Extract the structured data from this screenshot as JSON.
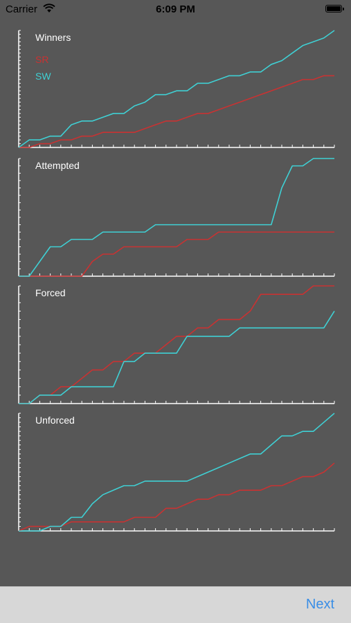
{
  "status_bar": {
    "carrier": "Carrier",
    "time": "6:09 PM"
  },
  "colors": {
    "series_1": "#c93232",
    "series_2": "#3fd0d4",
    "axis": "#ffffff",
    "background": "#575757"
  },
  "toolbar": {
    "next_label": "Next"
  },
  "chart_data": [
    {
      "type": "line",
      "title": "Winners",
      "legend": "top-left",
      "x": [
        0,
        1,
        2,
        3,
        4,
        5,
        6,
        7,
        8,
        9,
        10,
        11,
        12,
        13,
        14,
        15,
        16,
        17,
        18,
        19,
        20,
        21,
        22,
        23,
        24,
        25,
        26,
        27,
        28,
        29,
        30
      ],
      "series": [
        {
          "name": "SR",
          "values": [
            0,
            0,
            1,
            1,
            2,
            2,
            3,
            3,
            4,
            4,
            4,
            4,
            5,
            6,
            7,
            7,
            8,
            9,
            9,
            10,
            11,
            12,
            13,
            14,
            15,
            16,
            17,
            18,
            18,
            19,
            19
          ]
        },
        {
          "name": "SW",
          "values": [
            0,
            2,
            2,
            3,
            3,
            6,
            7,
            7,
            8,
            9,
            9,
            11,
            12,
            14,
            14,
            15,
            15,
            17,
            17,
            18,
            19,
            19,
            20,
            20,
            22,
            23,
            25,
            27,
            28,
            29,
            31
          ]
        }
      ]
    },
    {
      "type": "line",
      "title": "Attempted",
      "x": [
        0,
        1,
        2,
        3,
        4,
        5,
        6,
        7,
        8,
        9,
        10,
        11,
        12,
        13,
        14,
        15,
        16,
        17,
        18,
        19,
        20,
        21,
        22,
        23,
        24,
        25,
        26,
        27,
        28,
        29,
        30
      ],
      "series": [
        {
          "values": [
            0,
            0,
            0,
            0,
            0,
            0,
            0,
            2,
            3,
            3,
            4,
            4,
            4,
            4,
            4,
            4,
            5,
            5,
            5,
            6,
            6,
            6,
            6,
            6,
            6,
            6,
            6,
            6,
            6,
            6,
            6
          ]
        },
        {
          "values": [
            0,
            0,
            2,
            4,
            4,
            5,
            5,
            5,
            6,
            6,
            6,
            6,
            6,
            7,
            7,
            7,
            7,
            7,
            7,
            7,
            7,
            7,
            7,
            7,
            7,
            12,
            15,
            15,
            16,
            16,
            16
          ]
        }
      ]
    },
    {
      "type": "line",
      "title": "Forced",
      "x": [
        0,
        1,
        2,
        3,
        4,
        5,
        6,
        7,
        8,
        9,
        10,
        11,
        12,
        13,
        14,
        15,
        16,
        17,
        18,
        19,
        20,
        21,
        22,
        23,
        24,
        25,
        26,
        27,
        28,
        29,
        30
      ],
      "series": [
        {
          "values": [
            0,
            0,
            1,
            1,
            2,
            2,
            3,
            4,
            4,
            5,
            5,
            6,
            6,
            6,
            7,
            8,
            8,
            9,
            9,
            10,
            10,
            10,
            11,
            13,
            13,
            13,
            13,
            13,
            14,
            14,
            14
          ]
        },
        {
          "values": [
            0,
            0,
            1,
            1,
            1,
            2,
            2,
            2,
            2,
            2,
            5,
            5,
            6,
            6,
            6,
            6,
            8,
            8,
            8,
            8,
            8,
            9,
            9,
            9,
            9,
            9,
            9,
            9,
            9,
            9,
            11
          ]
        }
      ]
    },
    {
      "type": "line",
      "title": "Unforced",
      "x": [
        0,
        1,
        2,
        3,
        4,
        5,
        6,
        7,
        8,
        9,
        10,
        11,
        12,
        13,
        14,
        15,
        16,
        17,
        18,
        19,
        20,
        21,
        22,
        23,
        24,
        25,
        26,
        27,
        28,
        29,
        30
      ],
      "series": [
        {
          "values": [
            0,
            1,
            1,
            1,
            1,
            2,
            2,
            2,
            2,
            2,
            2,
            3,
            3,
            3,
            5,
            5,
            6,
            7,
            7,
            8,
            8,
            9,
            9,
            9,
            10,
            10,
            11,
            12,
            12,
            13,
            15
          ]
        },
        {
          "values": [
            0,
            0,
            0,
            1,
            1,
            3,
            3,
            6,
            8,
            9,
            10,
            10,
            11,
            11,
            11,
            11,
            11,
            12,
            13,
            14,
            15,
            16,
            17,
            17,
            19,
            21,
            21,
            22,
            22,
            24,
            26
          ]
        }
      ]
    }
  ]
}
